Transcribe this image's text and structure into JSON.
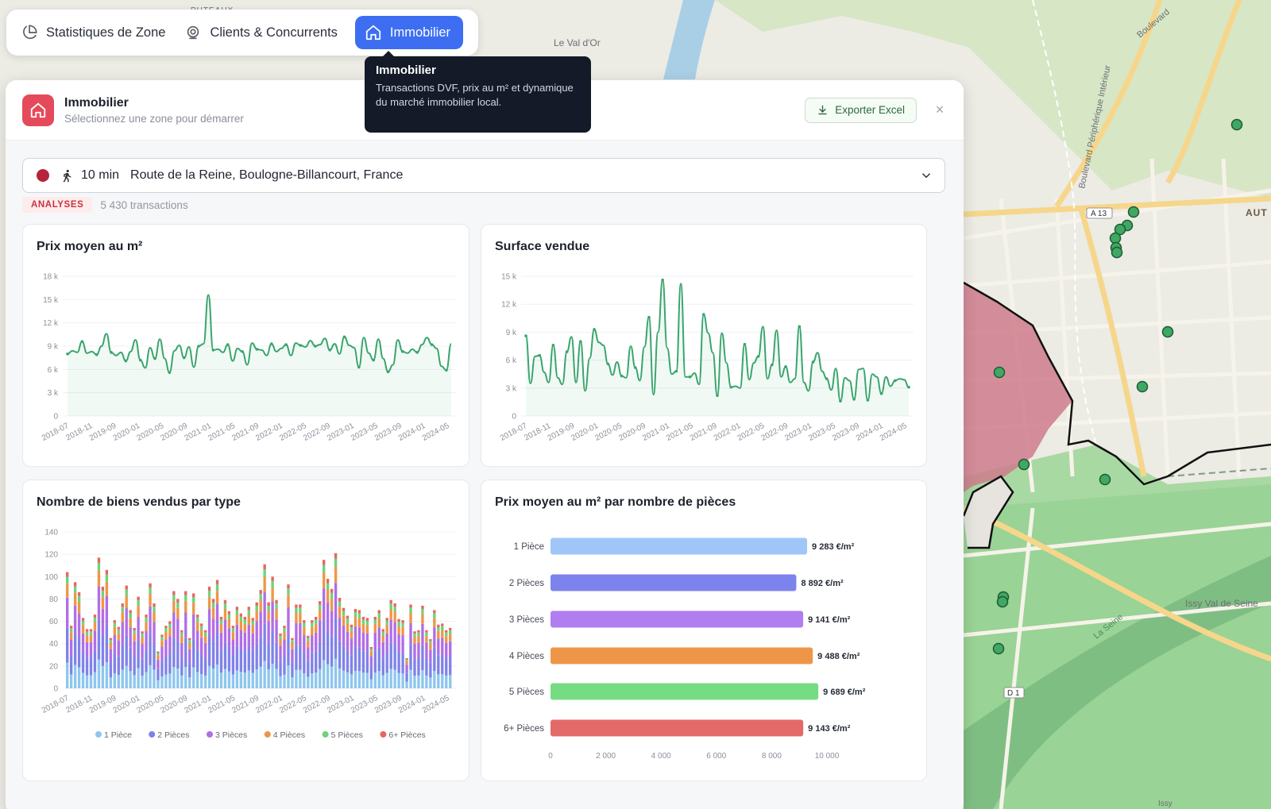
{
  "map": {
    "labels": {
      "val_dor": "Le Val d'Or",
      "peripherique": "Boulevard Périphérique Intérieur",
      "boulevard": "Boulevard",
      "a13": "A 13",
      "auteuil": "AUT",
      "issy_val": "Issy Val de Seine",
      "seine": "La Seine",
      "d1": "D 1",
      "puteaux": "PUTEAUX",
      "issy": "Issy"
    }
  },
  "nav": {
    "tabs": [
      {
        "label": "Statistiques de Zone",
        "icon": "pie-chart-icon"
      },
      {
        "label": "Clients & Concurrents",
        "icon": "map-pin-icon"
      },
      {
        "label": "Immobilier",
        "icon": "home-icon",
        "active": true
      }
    ]
  },
  "tooltip": {
    "title": "Immobilier",
    "text": "Transactions DVF, prix au m² et dynamique du marché immobilier local."
  },
  "panel": {
    "title": "Immobilier",
    "subtitle": "Sélectionnez une zone pour démarrer",
    "export_label": "Exporter Excel",
    "close_label": "×",
    "zone": {
      "time": "10 min",
      "address": "Route de la Reine, Boulogne-Billancourt, France",
      "color": "#b5243c"
    },
    "badge": "ANALYSES",
    "transactions": "5 430 transactions"
  },
  "colors": {
    "accent": "#3d6ef2",
    "brand": "#e54a5b",
    "line": "#3aa56c"
  },
  "chart_data": [
    {
      "type": "line",
      "title": "Prix moyen au m²",
      "x_ticks": [
        "2018-07",
        "2018-11",
        "2019-09",
        "2020-01",
        "2020-05",
        "2020-09",
        "2021-01",
        "2021-05",
        "2021-09",
        "2022-01",
        "2022-05",
        "2022-09",
        "2023-01",
        "2023-05",
        "2023-09",
        "2024-01",
        "2024-05"
      ],
      "y_ticks": [
        "0",
        "3 k",
        "6 k",
        "9 k",
        "12 k",
        "15 k",
        "18 k"
      ],
      "ylim": [
        0,
        18000
      ],
      "values": [
        8000,
        8400,
        8200,
        9600,
        8100,
        8300,
        7900,
        9000,
        10600,
        8200,
        7800,
        8200,
        7100,
        8300,
        9800,
        7200,
        6200,
        8800,
        7400,
        9900,
        7400,
        5600,
        8400,
        9100,
        7500,
        8900,
        6300,
        9000,
        9300,
        15600,
        8500,
        8600,
        8200,
        9200,
        7100,
        8700,
        8300,
        6600,
        9400,
        8600,
        8500,
        7800,
        9300,
        8300,
        8700,
        9200,
        7800,
        9400,
        9100,
        8900,
        9700,
        9000,
        9200,
        10000,
        8500,
        9300,
        8000,
        10200,
        9100,
        8800,
        6300,
        10100,
        8100,
        7200,
        9900,
        7400,
        5700,
        6600,
        9800,
        8300,
        8100,
        8600,
        8200,
        9200,
        10100,
        9200,
        8700,
        6400,
        5900,
        9300
      ]
    },
    {
      "type": "line",
      "title": "Surface vendue",
      "x_ticks": [
        "2018-07",
        "2018-11",
        "2019-09",
        "2020-01",
        "2020-05",
        "2020-09",
        "2021-01",
        "2021-05",
        "2021-09",
        "2022-01",
        "2022-05",
        "2022-09",
        "2023-01",
        "2023-05",
        "2023-09",
        "2024-01",
        "2024-05"
      ],
      "y_ticks": [
        "0",
        "3 k",
        "6 k",
        "9 k",
        "12 k",
        "15 k"
      ],
      "ylim": [
        0,
        15000
      ],
      "values": [
        8600,
        3500,
        6400,
        6500,
        4700,
        3600,
        7600,
        4100,
        3400,
        6900,
        8500,
        3600,
        8000,
        2700,
        6200,
        9300,
        7900,
        7600,
        5600,
        4400,
        5800,
        4300,
        4100,
        7500,
        5200,
        3800,
        7400,
        10600,
        2300,
        9000,
        14600,
        7300,
        4500,
        4800,
        14200,
        4200,
        4200,
        4600,
        3400,
        10900,
        8900,
        6800,
        2200,
        8900,
        5700,
        3100,
        3200,
        3000,
        7700,
        3900,
        5700,
        6400,
        9600,
        4000,
        5500,
        9200,
        4200,
        5300,
        3600,
        4000,
        9600,
        3600,
        2700,
        5800,
        6800,
        4800,
        4000,
        2800,
        5100,
        1600,
        4100,
        3800,
        1800,
        5000,
        5100,
        1700,
        4500,
        4200,
        2400,
        4200,
        3200,
        3800,
        4000,
        3900,
        3100
      ]
    },
    {
      "type": "bar",
      "stacked": true,
      "title": "Nombre de biens vendus par type",
      "x_ticks": [
        "2018-07",
        "2018-11",
        "2019-09",
        "2020-01",
        "2020-05",
        "2020-09",
        "2021-01",
        "2021-05",
        "2021-09",
        "2022-01",
        "2022-05",
        "2022-09",
        "2023-01",
        "2023-05",
        "2023-09",
        "2024-01",
        "2024-05"
      ],
      "y_ticks": [
        "0",
        "20",
        "40",
        "60",
        "80",
        "100",
        "120",
        "140"
      ],
      "ylim": [
        0,
        140
      ],
      "totals": [
        104,
        56,
        95,
        86,
        63,
        53,
        53,
        66,
        117,
        91,
        106,
        45,
        61,
        55,
        76,
        92,
        70,
        54,
        82,
        51,
        66,
        94,
        76,
        33,
        48,
        56,
        60,
        87,
        80,
        52,
        87,
        45,
        85,
        66,
        58,
        52,
        91,
        80,
        97,
        64,
        79,
        69,
        56,
        73,
        67,
        64,
        73,
        63,
        77,
        88,
        111,
        77,
        100,
        79,
        49,
        56,
        93,
        45,
        75,
        75,
        61,
        47,
        61,
        64,
        78,
        115,
        98,
        89,
        121,
        81,
        72,
        65,
        57,
        71,
        70,
        64,
        63,
        37,
        64,
        70,
        53,
        63,
        79,
        76,
        62,
        61,
        27,
        75,
        51,
        52,
        74,
        52,
        44,
        70,
        57,
        58,
        52,
        54
      ],
      "series": [
        {
          "name": "1 Pièce",
          "color": "#8ec6ee",
          "share": 0.22
        },
        {
          "name": "2 Pièces",
          "color": "#7f82e8",
          "share": 0.3
        },
        {
          "name": "3 Pièces",
          "color": "#b06ee6",
          "share": 0.26
        },
        {
          "name": "4 Pièces",
          "color": "#ee9647",
          "share": 0.12
        },
        {
          "name": "5 Pièces",
          "color": "#6fd27d",
          "share": 0.06
        },
        {
          "name": "6+ Pièces",
          "color": "#e4685f",
          "share": 0.04
        }
      ]
    },
    {
      "type": "bar",
      "orientation": "horizontal",
      "title": "Prix moyen au m² par nombre de pièces",
      "categories": [
        "1 Pièce",
        "2 Pièces",
        "3 Pièces",
        "4 Pièces",
        "5 Pièces",
        "6+ Pièces"
      ],
      "values": [
        9283,
        8892,
        9141,
        9488,
        9689,
        9143
      ],
      "value_labels": [
        "9 283 €/m²",
        "8 892 €/m²",
        "9 141 €/m²",
        "9 488 €/m²",
        "9 689 €/m²",
        "9 143 €/m²"
      ],
      "colors": [
        "#9fc6f7",
        "#7d83ec",
        "#b17ef2",
        "#ee9647",
        "#76dc84",
        "#e46a6a"
      ],
      "x_ticks": [
        "0",
        "2 000",
        "4 000",
        "6 000",
        "8 000",
        "10 000"
      ],
      "xlim": [
        0,
        10000
      ]
    }
  ]
}
